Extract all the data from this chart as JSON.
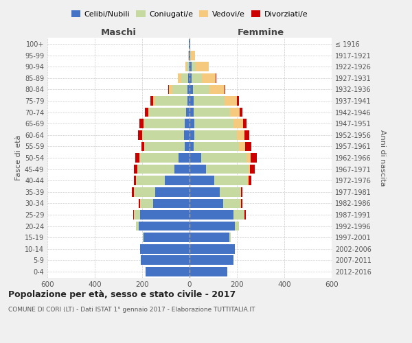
{
  "age_groups": [
    "0-4",
    "5-9",
    "10-14",
    "15-19",
    "20-24",
    "25-29",
    "30-34",
    "35-39",
    "40-44",
    "45-49",
    "50-54",
    "55-59",
    "60-64",
    "65-69",
    "70-74",
    "75-79",
    "80-84",
    "85-89",
    "90-94",
    "95-99",
    "100+"
  ],
  "birth_years": [
    "2012-2016",
    "2007-2011",
    "2002-2006",
    "1997-2001",
    "1992-1996",
    "1987-1991",
    "1982-1986",
    "1977-1981",
    "1972-1976",
    "1967-1971",
    "1962-1966",
    "1957-1961",
    "1952-1956",
    "1947-1951",
    "1942-1946",
    "1937-1941",
    "1932-1936",
    "1927-1931",
    "1922-1926",
    "1917-1921",
    "≤ 1916"
  ],
  "male_celibe": [
    185,
    205,
    210,
    195,
    215,
    210,
    155,
    145,
    105,
    65,
    45,
    20,
    22,
    20,
    15,
    10,
    8,
    5,
    3,
    2,
    2
  ],
  "male_coniugato": [
    0,
    0,
    0,
    2,
    10,
    25,
    55,
    90,
    120,
    155,
    165,
    170,
    175,
    170,
    155,
    135,
    65,
    30,
    10,
    2,
    0
  ],
  "male_vedovo": [
    0,
    0,
    0,
    0,
    0,
    0,
    0,
    0,
    0,
    0,
    1,
    2,
    2,
    3,
    5,
    8,
    15,
    15,
    5,
    2,
    0
  ],
  "male_divorziato": [
    0,
    0,
    0,
    0,
    0,
    2,
    5,
    8,
    10,
    15,
    18,
    12,
    18,
    18,
    12,
    12,
    2,
    0,
    0,
    0,
    0
  ],
  "female_celibe": [
    160,
    185,
    192,
    168,
    190,
    185,
    142,
    128,
    105,
    70,
    48,
    18,
    20,
    20,
    18,
    18,
    15,
    10,
    8,
    2,
    2
  ],
  "female_coniugato": [
    0,
    0,
    0,
    5,
    18,
    48,
    72,
    88,
    138,
    178,
    192,
    190,
    180,
    165,
    152,
    130,
    70,
    42,
    18,
    5,
    0
  ],
  "female_vedovo": [
    0,
    0,
    0,
    0,
    0,
    0,
    2,
    2,
    5,
    8,
    18,
    28,
    32,
    42,
    42,
    52,
    62,
    58,
    55,
    15,
    2
  ],
  "female_divorziato": [
    0,
    0,
    0,
    0,
    2,
    5,
    8,
    5,
    12,
    20,
    25,
    25,
    20,
    15,
    12,
    8,
    5,
    2,
    0,
    0,
    0
  ],
  "color_celibe": "#4472c4",
  "color_coniugato": "#c5d9a0",
  "color_vedovo": "#f5c97e",
  "color_divorziato": "#cc0000",
  "title": "Popolazione per età, sesso e stato civile - 2017",
  "subtitle": "COMUNE DI CORI (LT) - Dati ISTAT 1° gennaio 2017 - Elaborazione TUTTITALIA.IT",
  "label_maschi": "Maschi",
  "label_femmine": "Femmine",
  "ylabel_left": "Fasce di età",
  "ylabel_right": "Anni di nascita",
  "xlim": 600,
  "bg_color": "#f0f0f0",
  "plot_bg_color": "#ffffff",
  "legend_labels": [
    "Celibi/Nubili",
    "Coniugati/e",
    "Vedovi/e",
    "Divorziati/e"
  ]
}
